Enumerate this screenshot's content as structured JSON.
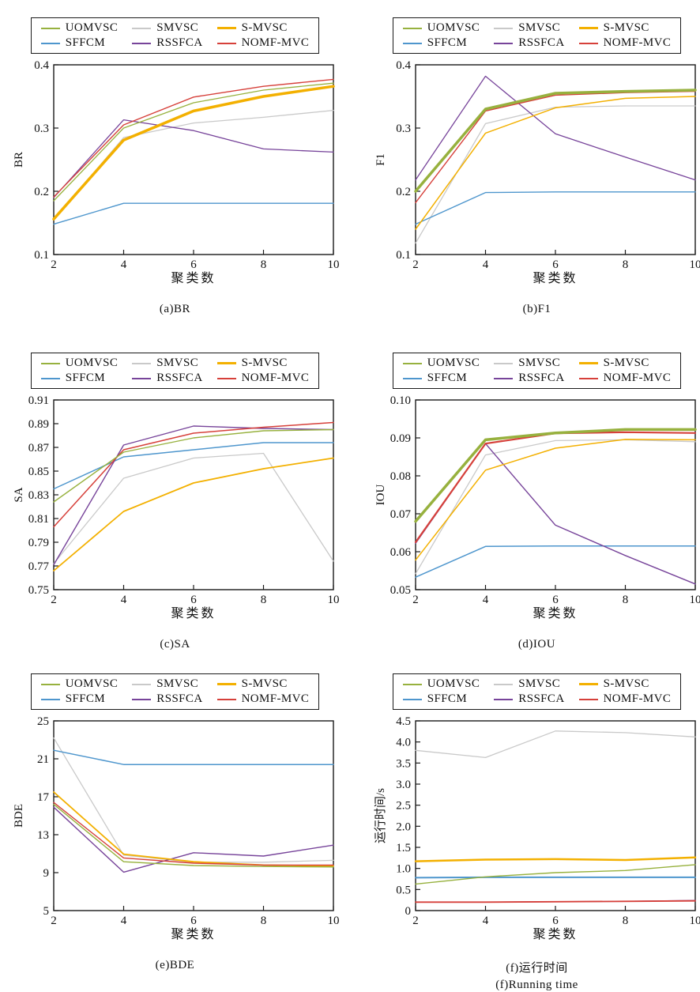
{
  "figure": {
    "x_axis_label": "聚类数",
    "x_values": [
      2,
      4,
      6,
      8,
      10
    ],
    "x_tick_labels": [
      "2",
      "4",
      "6",
      "8",
      "10"
    ],
    "legend_rows": [
      [
        "UOMVSC",
        "SMVSC",
        "S-MVSC"
      ],
      [
        "SFFCM",
        "RSSFCA",
        "NOMF-MVC"
      ]
    ],
    "colors": {
      "UOMVSC": "#97b13e",
      "SMVSC": "#c9c9c9",
      "S-MVSC": "#f3b000",
      "SFFCM": "#4e96cd",
      "RSSFCA": "#77449a",
      "NOMF-MVC": "#d6403a"
    },
    "axis_color": "#1a1a1a"
  },
  "chart_data": [
    {
      "id": "a",
      "type": "line",
      "caption": "(a)BR",
      "xlabel": "聚类数",
      "ylabel": "BR",
      "x": [
        2,
        4,
        6,
        8,
        10
      ],
      "xlim": [
        2,
        10
      ],
      "ylim": [
        0.1,
        0.4
      ],
      "yticks": [
        0.1,
        0.2,
        0.3,
        0.4
      ],
      "ytick_labels": [
        "0.1",
        "0.2",
        "0.3",
        "0.4"
      ],
      "legend_position": "top",
      "grid": false,
      "series": [
        {
          "name": "UOMVSC",
          "color": "#97b13e",
          "line_width": 1.3,
          "values": [
            0.185,
            0.3,
            0.34,
            0.36,
            0.371
          ]
        },
        {
          "name": "SMVSC",
          "color": "#c9c9c9",
          "line_width": 1.3,
          "values": [
            0.155,
            0.285,
            0.308,
            0.317,
            0.328
          ]
        },
        {
          "name": "S-MVSC",
          "color": "#f3b000",
          "line_width": 3.5,
          "values": [
            0.156,
            0.281,
            0.327,
            0.35,
            0.366
          ]
        },
        {
          "name": "SFFCM",
          "color": "#4e96cd",
          "line_width": 1.4,
          "values": [
            0.148,
            0.181,
            0.181,
            0.181,
            0.181
          ]
        },
        {
          "name": "RSSFCA",
          "color": "#77449a",
          "line_width": 1.3,
          "values": [
            0.19,
            0.313,
            0.296,
            0.267,
            0.262
          ]
        },
        {
          "name": "NOMF-MVC",
          "color": "#d6403a",
          "line_width": 1.4,
          "values": [
            0.191,
            0.305,
            0.349,
            0.366,
            0.377
          ]
        }
      ]
    },
    {
      "id": "b",
      "type": "line",
      "caption": "(b)F1",
      "xlabel": "聚类数",
      "ylabel": "F1",
      "x": [
        2,
        4,
        6,
        8,
        10
      ],
      "xlim": [
        2,
        10
      ],
      "ylim": [
        0.1,
        0.4
      ],
      "yticks": [
        0.1,
        0.2,
        0.3,
        0.4
      ],
      "ytick_labels": [
        "0.1",
        "0.2",
        "0.3",
        "0.4"
      ],
      "legend_position": "top",
      "grid": false,
      "series": [
        {
          "name": "UOMVSC",
          "color": "#97b13e",
          "line_width": 3.5,
          "values": [
            0.2,
            0.33,
            0.355,
            0.358,
            0.36
          ]
        },
        {
          "name": "SMVSC",
          "color": "#c9c9c9",
          "line_width": 1.3,
          "values": [
            0.118,
            0.307,
            0.333,
            0.335,
            0.335
          ]
        },
        {
          "name": "S-MVSC",
          "color": "#f3b000",
          "line_width": 1.5,
          "values": [
            0.14,
            0.292,
            0.332,
            0.347,
            0.35
          ]
        },
        {
          "name": "SFFCM",
          "color": "#4e96cd",
          "line_width": 1.4,
          "values": [
            0.148,
            0.198,
            0.199,
            0.199,
            0.199
          ]
        },
        {
          "name": "RSSFCA",
          "color": "#77449a",
          "line_width": 1.3,
          "values": [
            0.218,
            0.382,
            0.291,
            0.254,
            0.218
          ]
        },
        {
          "name": "NOMF-MVC",
          "color": "#d6403a",
          "line_width": 1.4,
          "values": [
            0.182,
            0.327,
            0.352,
            0.356,
            0.358
          ]
        }
      ]
    },
    {
      "id": "c",
      "type": "line",
      "caption": "(c)SA",
      "xlabel": "聚类数",
      "ylabel": "SA",
      "x": [
        2,
        4,
        6,
        8,
        10
      ],
      "xlim": [
        2,
        10
      ],
      "ylim": [
        0.75,
        0.91
      ],
      "yticks": [
        0.75,
        0.77,
        0.79,
        0.81,
        0.83,
        0.85,
        0.87,
        0.89,
        0.91
      ],
      "ytick_labels": [
        "0.75",
        "0.77",
        "0.79",
        "0.81",
        "0.83",
        "0.85",
        "0.87",
        "0.89",
        "0.91"
      ],
      "legend_position": "top",
      "grid": false,
      "series": [
        {
          "name": "UOMVSC",
          "color": "#97b13e",
          "line_width": 1.4,
          "values": [
            0.824,
            0.866,
            0.878,
            0.884,
            0.885
          ]
        },
        {
          "name": "SMVSC",
          "color": "#c9c9c9",
          "line_width": 1.3,
          "values": [
            0.772,
            0.844,
            0.861,
            0.865,
            0.774
          ]
        },
        {
          "name": "S-MVSC",
          "color": "#f3b000",
          "line_width": 1.8,
          "values": [
            0.766,
            0.816,
            0.84,
            0.852,
            0.861
          ]
        },
        {
          "name": "SFFCM",
          "color": "#4e96cd",
          "line_width": 1.5,
          "values": [
            0.835,
            0.862,
            0.868,
            0.874,
            0.874
          ]
        },
        {
          "name": "RSSFCA",
          "color": "#77449a",
          "line_width": 1.4,
          "values": [
            0.771,
            0.872,
            0.888,
            0.886,
            0.885
          ]
        },
        {
          "name": "NOMF-MVC",
          "color": "#d6403a",
          "line_width": 1.5,
          "values": [
            0.803,
            0.868,
            0.882,
            0.887,
            0.891
          ]
        }
      ]
    },
    {
      "id": "d",
      "type": "line",
      "caption": "(d)IOU",
      "xlabel": "聚类数",
      "ylabel": "IOU",
      "x": [
        2,
        4,
        6,
        8,
        10
      ],
      "xlim": [
        2,
        10
      ],
      "ylim": [
        0.05,
        0.1
      ],
      "yticks": [
        0.05,
        0.06,
        0.07,
        0.08,
        0.09,
        0.1
      ],
      "ytick_labels": [
        "0.05",
        "0.06",
        "0.07",
        "0.08",
        "0.09",
        "0.10"
      ],
      "legend_position": "top",
      "grid": false,
      "series": [
        {
          "name": "UOMVSC",
          "color": "#97b13e",
          "line_width": 3.5,
          "values": [
            0.068,
            0.0895,
            0.0913,
            0.0922,
            0.0922
          ]
        },
        {
          "name": "SMVSC",
          "color": "#c9c9c9",
          "line_width": 1.3,
          "values": [
            0.0542,
            0.0855,
            0.0893,
            0.0895,
            0.089
          ]
        },
        {
          "name": "S-MVSC",
          "color": "#f3b000",
          "line_width": 1.5,
          "values": [
            0.0578,
            0.0815,
            0.0873,
            0.0896,
            0.0895
          ]
        },
        {
          "name": "SFFCM",
          "color": "#4e96cd",
          "line_width": 1.5,
          "values": [
            0.0533,
            0.0614,
            0.0615,
            0.0615,
            0.0615
          ]
        },
        {
          "name": "RSSFCA",
          "color": "#77449a",
          "line_width": 1.4,
          "values": [
            0.0622,
            0.0885,
            0.067,
            0.059,
            0.0515
          ]
        },
        {
          "name": "NOMF-MVC",
          "color": "#d6403a",
          "line_width": 2.2,
          "values": [
            0.0625,
            0.0885,
            0.0912,
            0.0915,
            0.0913
          ]
        }
      ]
    },
    {
      "id": "e",
      "type": "line",
      "caption": "(e)BDE",
      "xlabel": "聚类数",
      "ylabel": "BDE",
      "x": [
        2,
        4,
        6,
        8,
        10
      ],
      "xlim": [
        2,
        10
      ],
      "ylim": [
        5,
        25
      ],
      "yticks": [
        5,
        9,
        13,
        17,
        21,
        25
      ],
      "ytick_labels": [
        "5",
        "9",
        "13",
        "17",
        "21",
        "25"
      ],
      "legend_position": "top",
      "grid": false,
      "series": [
        {
          "name": "UOMVSC",
          "color": "#97b13e",
          "line_width": 1.4,
          "values": [
            16.2,
            10.15,
            9.75,
            9.65,
            9.6
          ]
        },
        {
          "name": "SMVSC",
          "color": "#c9c9c9",
          "line_width": 1.3,
          "values": [
            23.2,
            10.85,
            10.1,
            10.1,
            10.3
          ]
        },
        {
          "name": "S-MVSC",
          "color": "#f3b000",
          "line_width": 1.8,
          "values": [
            17.5,
            10.95,
            10.15,
            9.8,
            9.7
          ]
        },
        {
          "name": "SFFCM",
          "color": "#4e96cd",
          "line_width": 1.5,
          "values": [
            21.9,
            20.4,
            20.4,
            20.4,
            20.4
          ]
        },
        {
          "name": "RSSFCA",
          "color": "#77449a",
          "line_width": 1.4,
          "values": [
            15.9,
            9.05,
            11.1,
            10.75,
            11.9
          ]
        },
        {
          "name": "NOMF-MVC",
          "color": "#d6403a",
          "line_width": 1.4,
          "values": [
            16.4,
            10.55,
            10.0,
            9.8,
            9.8
          ]
        }
      ]
    },
    {
      "id": "f",
      "type": "line",
      "caption": "(f)运行时间",
      "caption_en": "(f)Running time",
      "xlabel": "聚类数",
      "ylabel": "运行时间/s",
      "x": [
        2,
        4,
        6,
        8,
        10
      ],
      "xlim": [
        2,
        10
      ],
      "ylim": [
        0,
        4.5
      ],
      "yticks": [
        0,
        0.5,
        1.0,
        1.5,
        2.0,
        2.5,
        3.0,
        3.5,
        4.0,
        4.5
      ],
      "ytick_labels": [
        "0",
        "0.5",
        "1.0",
        "1.5",
        "2.0",
        "2.5",
        "3.0",
        "3.5",
        "4.0",
        "4.5"
      ],
      "legend_position": "top",
      "grid": false,
      "series": [
        {
          "name": "UOMVSC",
          "color": "#97b13e",
          "line_width": 1.4,
          "values": [
            0.63,
            0.8,
            0.9,
            0.95,
            1.09
          ]
        },
        {
          "name": "SMVSC",
          "color": "#c9c9c9",
          "line_width": 1.3,
          "values": [
            3.8,
            3.63,
            4.26,
            4.22,
            4.12
          ]
        },
        {
          "name": "S-MVSC",
          "color": "#f3b000",
          "line_width": 2.5,
          "values": [
            1.17,
            1.21,
            1.22,
            1.2,
            1.26
          ]
        },
        {
          "name": "SFFCM",
          "color": "#4e96cd",
          "line_width": 2.0,
          "values": [
            0.78,
            0.79,
            0.79,
            0.79,
            0.79
          ]
        },
        {
          "name": "RSSFCA",
          "color": "#77449a",
          "line_width": 1.3,
          "values": [
            0.2,
            0.2,
            0.21,
            0.22,
            0.24
          ]
        },
        {
          "name": "NOMF-MVC",
          "color": "#d6403a",
          "line_width": 1.8,
          "values": [
            0.2,
            0.2,
            0.21,
            0.22,
            0.23
          ]
        }
      ]
    }
  ]
}
